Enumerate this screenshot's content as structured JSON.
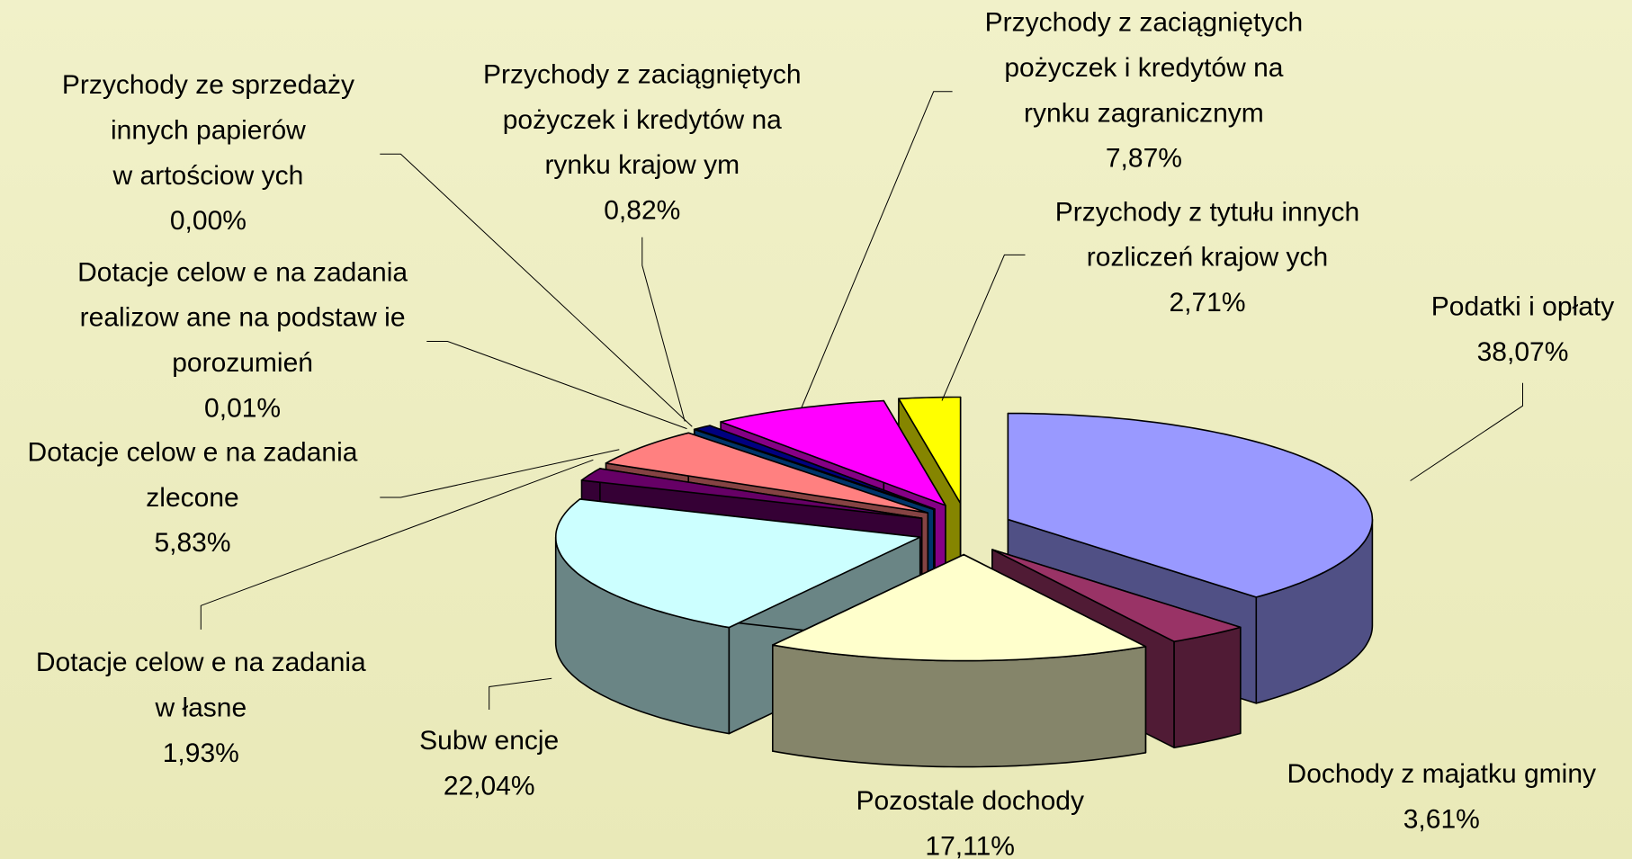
{
  "chart_data": {
    "type": "pie",
    "categories": [
      [
        "Podatki i opłaty"
      ],
      [
        "Dochody z majatku gminy"
      ],
      [
        "Pozostale dochody"
      ],
      [
        "Subw encje"
      ],
      [
        "Dotacje celow e na zadania",
        "w łasne"
      ],
      [
        "Dotacje celow e na zadania",
        "zlecone"
      ],
      [
        "Dotacje celow e na zadania",
        "realizow ane na podstaw ie",
        "porozumień"
      ],
      [
        "Przychody ze sprzedaży",
        "innych papierów",
        "w artościow ych"
      ],
      [
        "Przychody z zaciągniętych",
        "pożyczek i kredytów  na",
        "rynku krajow ym"
      ],
      [
        "Przychody z zaciągniętych",
        "pożyczek i kredytów  na",
        "rynku zagranicznym"
      ],
      [
        "Przychody z tytułu innych",
        "rozliczeń krajow ych"
      ]
    ],
    "values": [
      38.07,
      3.61,
      17.11,
      22.04,
      1.93,
      5.83,
      0.01,
      0.0,
      0.82,
      7.87,
      2.71
    ],
    "value_labels": [
      "38,07%",
      "3,61%",
      "17,11%",
      "22,04%",
      "1,93%",
      "5,83%",
      "0,01%",
      "0,00%",
      "0,82%",
      "7,87%",
      "2,71%"
    ],
    "colors": [
      "#9999ff",
      "#993366",
      "#ffffcc",
      "#ccffff",
      "#660066",
      "#ff8080",
      "#0066cc",
      "#ccccff",
      "#000080",
      "#ff00ff",
      "#ffff00"
    ]
  }
}
